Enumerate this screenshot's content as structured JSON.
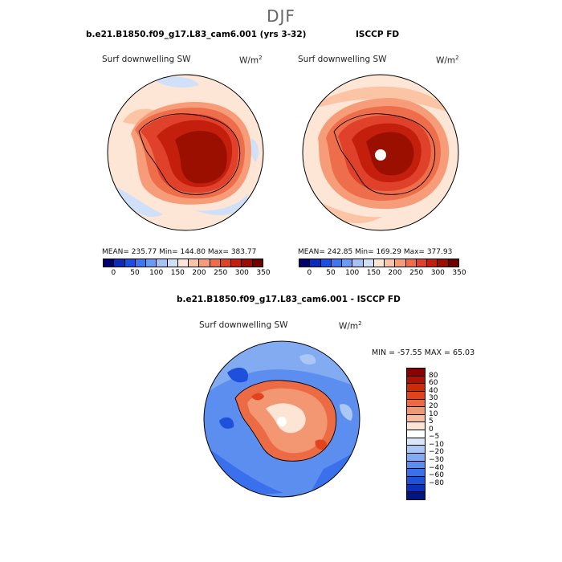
{
  "page": {
    "title": "DJF"
  },
  "panels": [
    {
      "title": "b.e21.B1850.f09_g17.L83_cam6.001 (yrs 3-32)",
      "field": "Surf downwelling SW",
      "units_base": "W/m",
      "units_exp": "2",
      "stats": "MEAN= 235.77   Min= 144.80   Max= 383.77"
    },
    {
      "title": "ISCCP FD",
      "field": "Surf downwelling SW",
      "units_base": "W/m",
      "units_exp": "2",
      "stats": "MEAN= 242.85   Min= 169.29   Max= 377.93"
    },
    {
      "title": "b.e21.B1850.f09_g17.L83_cam6.001 - ISCCP FD",
      "field": "Surf downwelling SW",
      "units_base": "W/m",
      "units_exp": "2",
      "stats": "MIN = -57.55 MAX =  65.03"
    }
  ],
  "colorbar_abs": {
    "colors": [
      "#00006e",
      "#0c2bb8",
      "#1c4fe0",
      "#3d78f2",
      "#6a9bf5",
      "#a6c3f5",
      "#cfe0f8",
      "#fde6d6",
      "#fbc4a4",
      "#f69c78",
      "#ee6d4a",
      "#e0412a",
      "#c41e0c",
      "#9a0f00",
      "#6e0000"
    ],
    "labels": [
      "0",
      "50",
      "100",
      "150",
      "200",
      "250",
      "300",
      "350"
    ]
  },
  "colorbar_diff": {
    "colors": [
      "#8b0000",
      "#b01000",
      "#cc2a08",
      "#e2431c",
      "#ec6a44",
      "#f39672",
      "#f8bd9e",
      "#fde5d5",
      "#ffffff",
      "#d8e6f8",
      "#aac8f5",
      "#83abf2",
      "#5c8ef0",
      "#3a70ec",
      "#1f50dc",
      "#0c2fbe",
      "#00157e"
    ],
    "labels": [
      "80",
      "60",
      "40",
      "30",
      "20",
      "10",
      "5",
      "0",
      "−5",
      "−10",
      "−20",
      "−30",
      "−40",
      "−60",
      "−80"
    ]
  }
}
